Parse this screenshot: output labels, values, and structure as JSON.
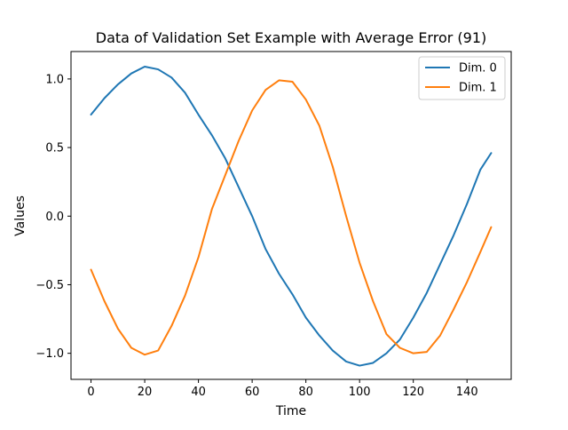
{
  "chart_data": {
    "type": "line",
    "title": "Data of Validation Set Example with Average Error (91)",
    "xlabel": "Time",
    "ylabel": "Values",
    "xlim": [
      -7.45,
      156.45
    ],
    "ylim": [
      -1.19,
      1.2
    ],
    "xticks": [
      0,
      20,
      40,
      60,
      80,
      100,
      120,
      140
    ],
    "yticks": [
      -1.0,
      -0.5,
      0.0,
      0.5,
      1.0
    ],
    "xtick_labels": [
      "0",
      "20",
      "40",
      "60",
      "80",
      "100",
      "120",
      "140"
    ],
    "ytick_labels": [
      "−1.0",
      "−0.5",
      "0.0",
      "0.5",
      "1.0"
    ],
    "grid": false,
    "legend_position": "top-right",
    "series": [
      {
        "name": "Dim. 0",
        "color": "#1f77b4",
        "x": [
          0,
          5,
          10,
          15,
          20,
          25,
          30,
          35,
          40,
          45,
          50,
          55,
          60,
          65,
          70,
          75,
          80,
          85,
          90,
          95,
          100,
          105,
          110,
          115,
          120,
          125,
          130,
          135,
          140,
          145,
          149
        ],
        "y": [
          0.74,
          0.86,
          0.96,
          1.04,
          1.09,
          1.07,
          1.01,
          0.9,
          0.74,
          0.59,
          0.42,
          0.21,
          0.0,
          -0.24,
          -0.42,
          -0.57,
          -0.74,
          -0.87,
          -0.98,
          -1.06,
          -1.09,
          -1.07,
          -1.0,
          -0.9,
          -0.74,
          -0.56,
          -0.35,
          -0.14,
          0.09,
          0.34,
          0.46
        ]
      },
      {
        "name": "Dim. 1",
        "color": "#ff7f0e",
        "x": [
          0,
          5,
          10,
          15,
          20,
          25,
          30,
          35,
          40,
          45,
          50,
          55,
          60,
          65,
          70,
          75,
          80,
          85,
          90,
          95,
          100,
          105,
          110,
          115,
          120,
          125,
          130,
          135,
          140,
          145,
          149
        ],
        "y": [
          -0.39,
          -0.62,
          -0.82,
          -0.96,
          -1.01,
          -0.98,
          -0.8,
          -0.58,
          -0.3,
          0.05,
          0.3,
          0.55,
          0.77,
          0.92,
          0.99,
          0.98,
          0.85,
          0.66,
          0.36,
          0.0,
          -0.34,
          -0.62,
          -0.86,
          -0.96,
          -1.0,
          -0.99,
          -0.87,
          -0.68,
          -0.48,
          -0.26,
          -0.08
        ]
      }
    ]
  }
}
